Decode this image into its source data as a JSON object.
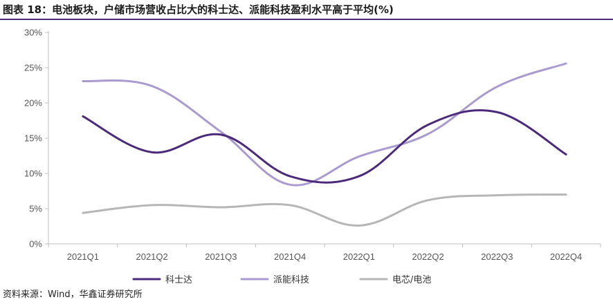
{
  "title": "图表 18：电池板块，户储市场营收占比大的科士达、派能科技盈利水平高于平均(%)",
  "source": "资料来源：Wind，华鑫证券研究所",
  "chart_data": {
    "type": "line",
    "smooth": true,
    "categories": [
      "2021Q1",
      "2021Q2",
      "2021Q3",
      "2021Q4",
      "2022Q1",
      "2022Q2",
      "2022Q3",
      "2022Q4"
    ],
    "y_ticks": [
      0,
      5,
      10,
      15,
      20,
      25,
      30
    ],
    "y_tick_labels": [
      "0%",
      "5%",
      "10%",
      "15%",
      "20%",
      "25%",
      "30%"
    ],
    "ylim": [
      0,
      30
    ],
    "grid": false,
    "legend_position": "bottom",
    "series": [
      {
        "name": "科士达",
        "color": "#4b2a7b",
        "values": [
          18.1,
          13.0,
          15.5,
          9.6,
          9.6,
          16.9,
          18.7,
          12.7
        ]
      },
      {
        "name": "派能科技",
        "color": "#a99ad0",
        "values": [
          23.1,
          22.4,
          15.9,
          8.4,
          12.4,
          15.6,
          22.3,
          25.6
        ]
      },
      {
        "name": "电芯/电池",
        "color": "#b6b6b6",
        "values": [
          4.4,
          5.5,
          5.2,
          5.5,
          2.6,
          6.2,
          6.9,
          7.0
        ]
      }
    ]
  }
}
